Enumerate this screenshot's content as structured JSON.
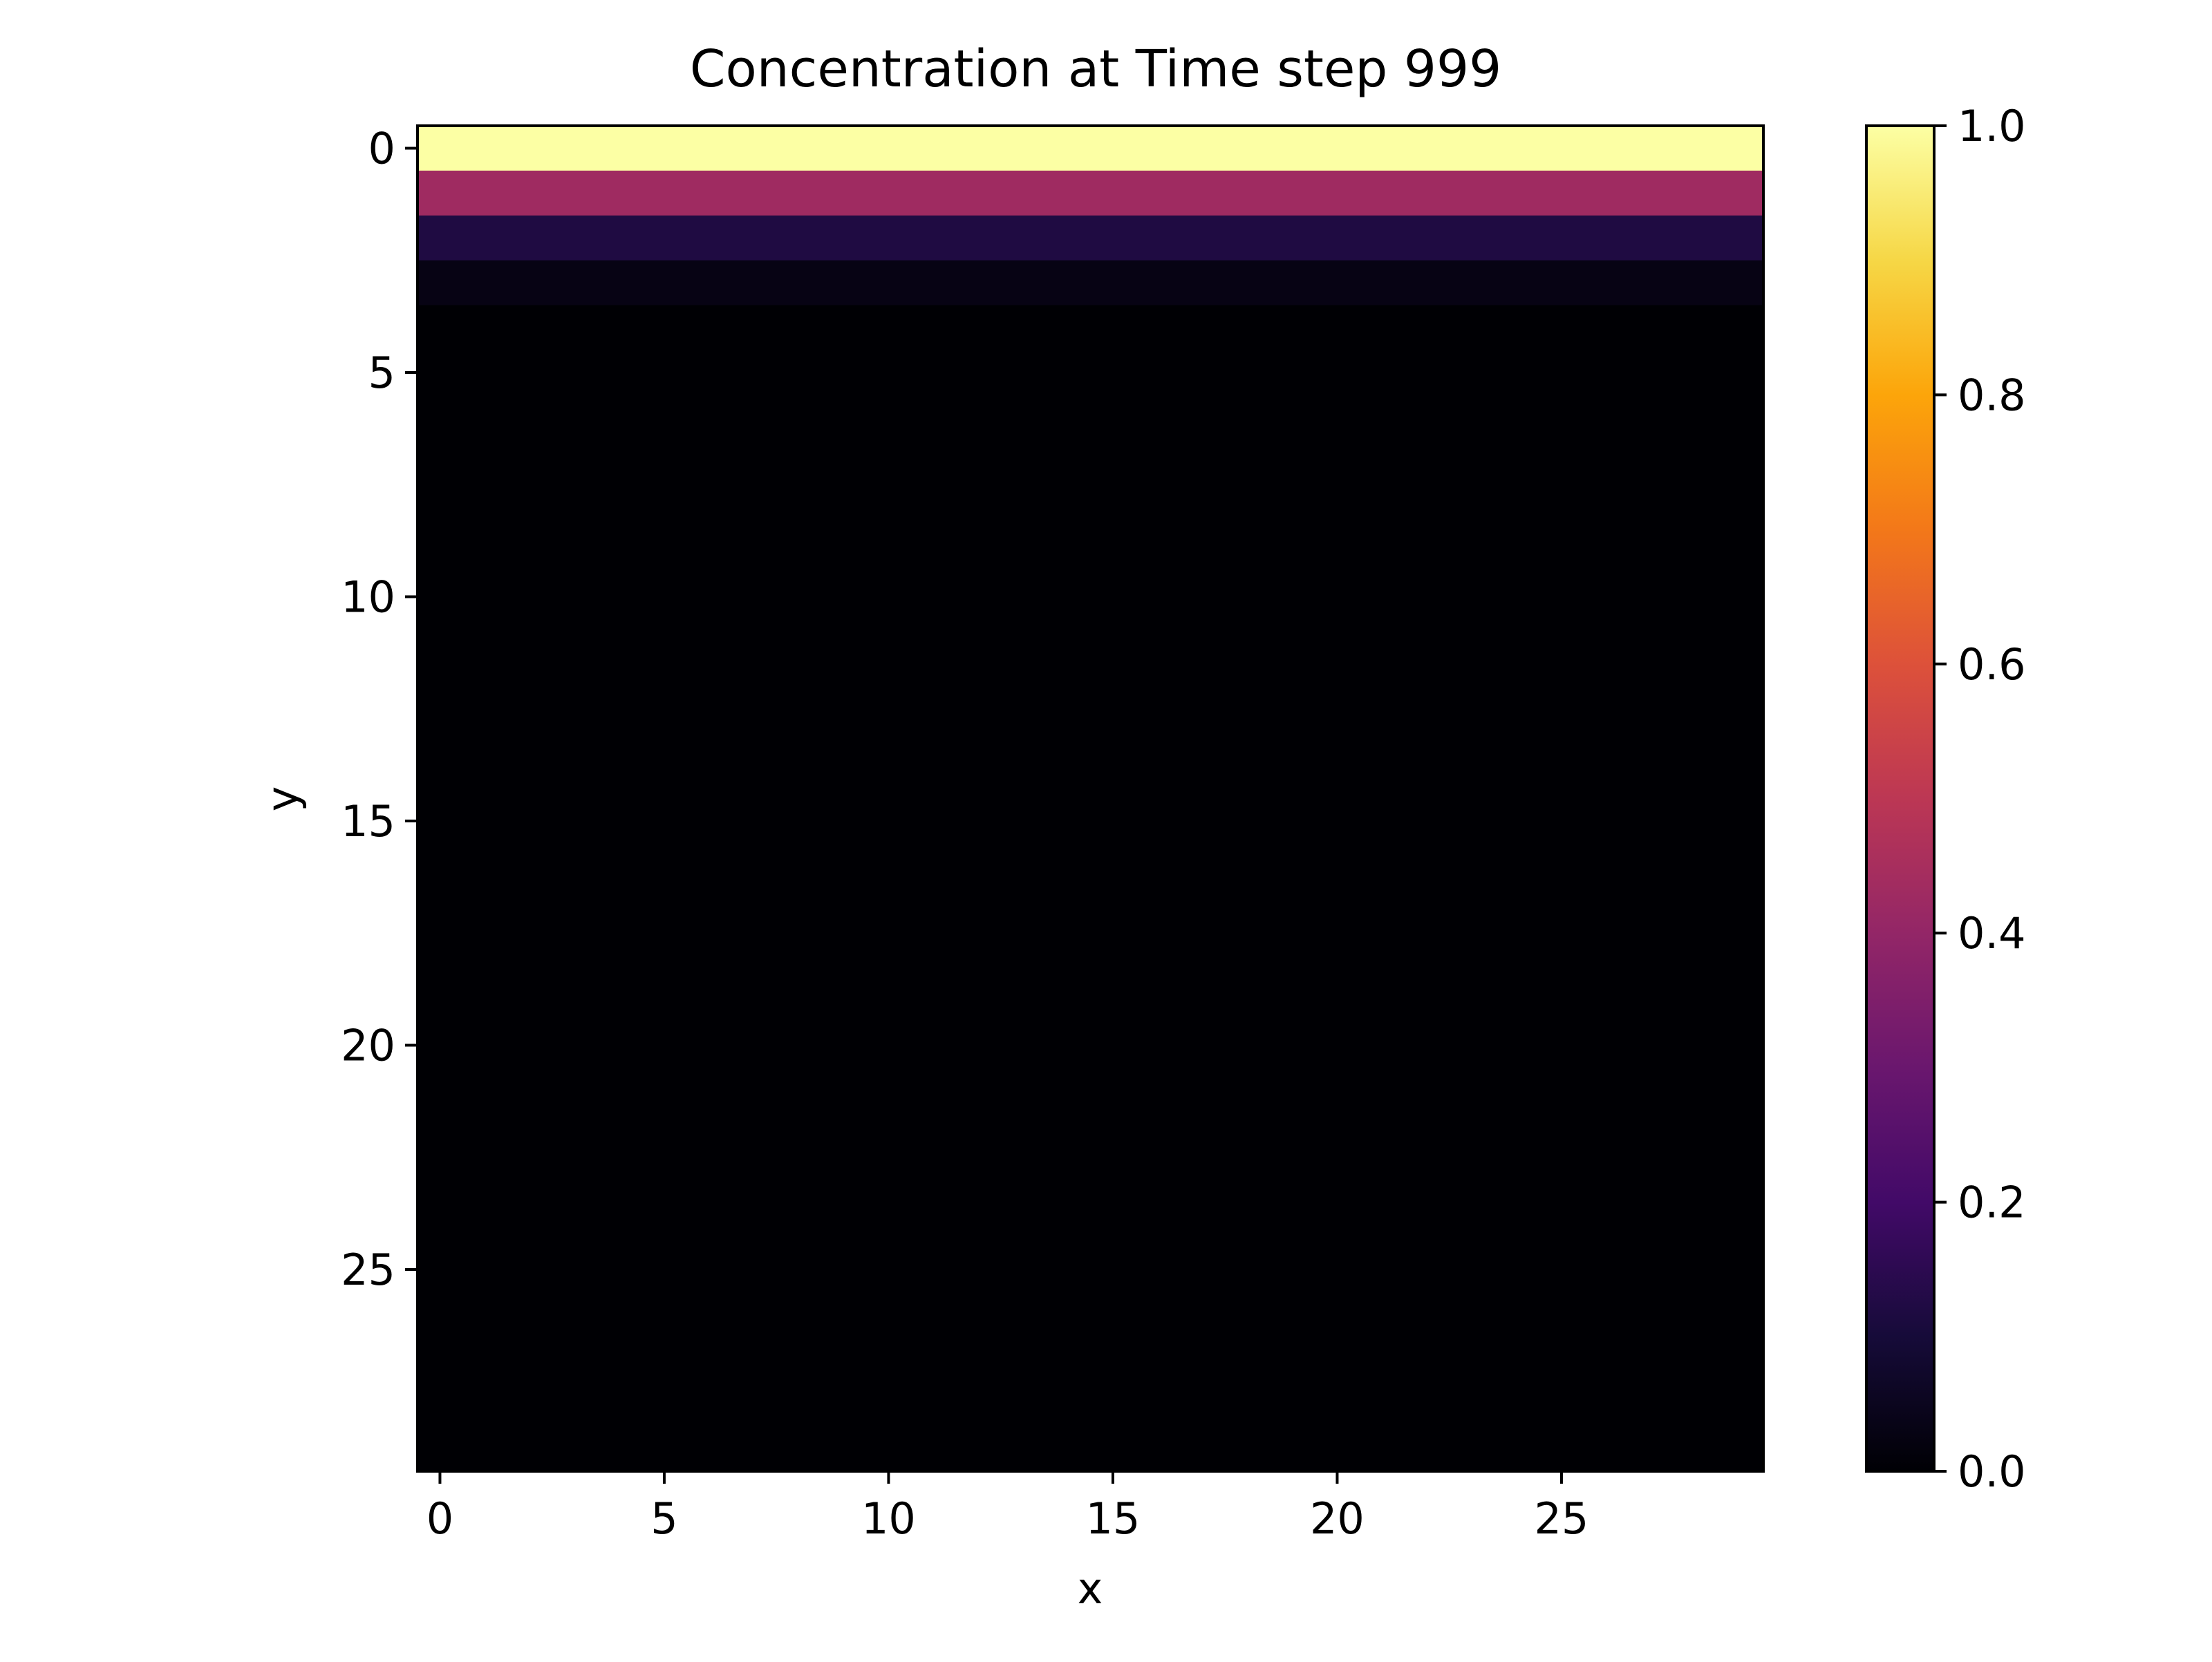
{
  "chart_data": {
    "type": "heatmap",
    "title": "Concentration at Time step 999",
    "xlabel": "x",
    "ylabel": "y",
    "colormap": "inferno",
    "shape": [
      30,
      30
    ],
    "xlim": [
      -0.5,
      29.5
    ],
    "ylim": [
      29.5,
      -0.5
    ],
    "y_axis_inverted": true,
    "x_ticks": [
      0,
      5,
      10,
      15,
      20,
      25
    ],
    "y_ticks": [
      0,
      5,
      10,
      15,
      20,
      25
    ],
    "row_values": [
      1.0,
      0.43,
      0.12,
      0.03,
      0.0,
      0.0,
      0.0,
      0.0,
      0.0,
      0.0,
      0.0,
      0.0,
      0.0,
      0.0,
      0.0,
      0.0,
      0.0,
      0.0,
      0.0,
      0.0,
      0.0,
      0.0,
      0.0,
      0.0,
      0.0,
      0.0,
      0.0,
      0.0,
      0.0,
      0.0
    ],
    "row_values_note_hidden": "",
    "colorbar": {
      "vmin": 0.0,
      "vmax": 1.0,
      "ticks": [
        "0.0",
        "0.2",
        "0.4",
        "0.6",
        "0.8",
        "1.0"
      ]
    }
  }
}
